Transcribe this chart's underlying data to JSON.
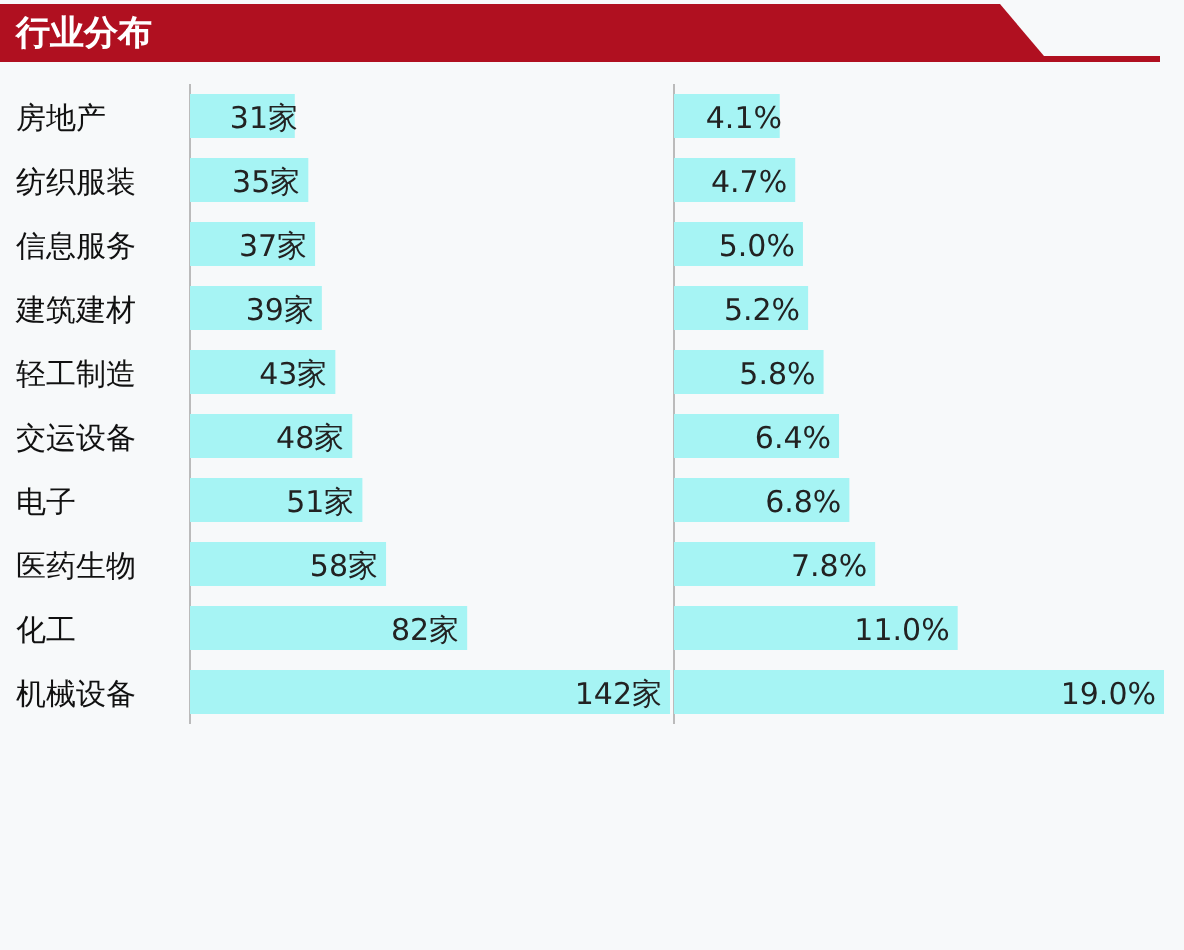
{
  "chart_data": [
    {
      "type": "bar",
      "orientation": "horizontal",
      "title": "行业分布",
      "color": "#a6f4f4",
      "categories": [
        "房地产",
        "纺织服装",
        "信息服务",
        "建筑建材",
        "轻工制造",
        "交运设备",
        "电子",
        "医药生物",
        "化工",
        "机械设备"
      ],
      "values": [
        31,
        35,
        37,
        39,
        43,
        48,
        51,
        58,
        82,
        142
      ],
      "value_labels": [
        "31家",
        "35家",
        "37家",
        "39家",
        "43家",
        "48家",
        "51家",
        "58家",
        "82家",
        "142家"
      ]
    },
    {
      "type": "bar",
      "orientation": "horizontal",
      "color": "#a6f4f4",
      "categories": [
        null,
        null,
        null,
        null,
        null,
        null,
        null,
        null,
        null,
        null
      ],
      "values": [
        4.1,
        4.7,
        5.0,
        5.2,
        5.8,
        6.4,
        6.8,
        7.8,
        11.0,
        19.0
      ],
      "value_labels": [
        "4.1%",
        "4.7%",
        "5.0%",
        "5.2%",
        "5.8%",
        "6.4%",
        "6.8%",
        "7.8%",
        "11.0%",
        "19.0%"
      ]
    }
  ]
}
